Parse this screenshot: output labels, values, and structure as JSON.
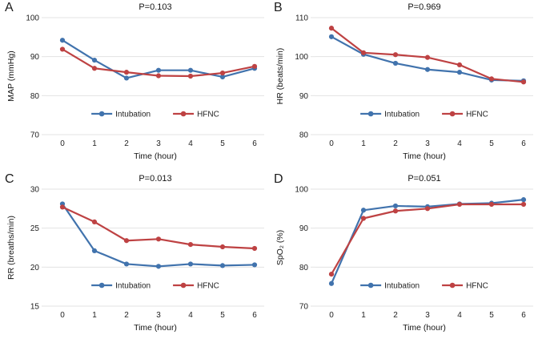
{
  "figure": {
    "background": "#ffffff",
    "gridline_color": "#e3e3e3",
    "text_color": "#141414",
    "intubation_color": "#4173AD",
    "hfnc_color": "#BE4243"
  },
  "chart_data": [
    {
      "type": "line",
      "panel_label": "A",
      "title": "P=0.103",
      "xlabel": "Time (hour)",
      "ylabel": "MAP (mmHg)",
      "x": [
        0,
        1,
        2,
        3,
        4,
        5,
        6
      ],
      "ylim": [
        70,
        100
      ],
      "yticks": [
        70,
        80,
        90,
        100
      ],
      "grid": "horizontal",
      "legend_position": "inside-bottom-center",
      "series": [
        {
          "name": "Intubation",
          "color": "#4173AD",
          "values": [
            94.2,
            89.1,
            84.5,
            86.5,
            86.5,
            84.8,
            87.0
          ]
        },
        {
          "name": "HFNC",
          "color": "#BE4243",
          "values": [
            91.9,
            87.0,
            86.0,
            85.1,
            85.0,
            85.8,
            87.5
          ]
        }
      ]
    },
    {
      "type": "line",
      "panel_label": "B",
      "title": "P=0.969",
      "xlabel": "Time (hour)",
      "ylabel": "HR (beats/min)",
      "x": [
        0,
        1,
        2,
        3,
        4,
        5,
        6
      ],
      "ylim": [
        80,
        110
      ],
      "yticks": [
        80,
        90,
        100,
        110
      ],
      "grid": "horizontal",
      "legend_position": "inside-bottom-center",
      "series": [
        {
          "name": "Intubation",
          "color": "#4173AD",
          "values": [
            105.1,
            100.6,
            98.3,
            96.7,
            96.0,
            94.0,
            93.8
          ]
        },
        {
          "name": "HFNC",
          "color": "#BE4243",
          "values": [
            107.3,
            101.0,
            100.5,
            99.8,
            97.9,
            94.3,
            93.5
          ]
        }
      ]
    },
    {
      "type": "line",
      "panel_label": "C",
      "title": "P=0.013",
      "xlabel": "Time (hour)",
      "ylabel": "RR (breaths/min)",
      "x": [
        0,
        1,
        2,
        3,
        4,
        5,
        6
      ],
      "ylim": [
        15,
        30
      ],
      "yticks": [
        15,
        20,
        25,
        30
      ],
      "grid": "horizontal",
      "legend_position": "inside-bottom-center",
      "series": [
        {
          "name": "Intubation",
          "color": "#4173AD",
          "values": [
            28.1,
            22.1,
            20.4,
            20.1,
            20.4,
            20.2,
            20.3
          ]
        },
        {
          "name": "HFNC",
          "color": "#BE4243",
          "values": [
            27.7,
            25.8,
            23.4,
            23.6,
            22.9,
            22.6,
            22.4
          ]
        }
      ]
    },
    {
      "type": "line",
      "panel_label": "D",
      "title": "P=0.051",
      "xlabel": "Time (hour)",
      "ylabel": "SpO₂ (%)",
      "x": [
        0,
        1,
        2,
        3,
        4,
        5,
        6
      ],
      "ylim": [
        70,
        100
      ],
      "yticks": [
        70,
        80,
        90,
        100
      ],
      "grid": "horizontal",
      "legend_position": "inside-bottom-center",
      "series": [
        {
          "name": "Intubation",
          "color": "#4173AD",
          "values": [
            75.8,
            94.6,
            95.7,
            95.5,
            96.2,
            96.4,
            97.3
          ]
        },
        {
          "name": "HFNC",
          "color": "#BE4243",
          "values": [
            78.2,
            92.5,
            94.4,
            95.0,
            96.1,
            96.1,
            96.1
          ]
        }
      ]
    }
  ]
}
